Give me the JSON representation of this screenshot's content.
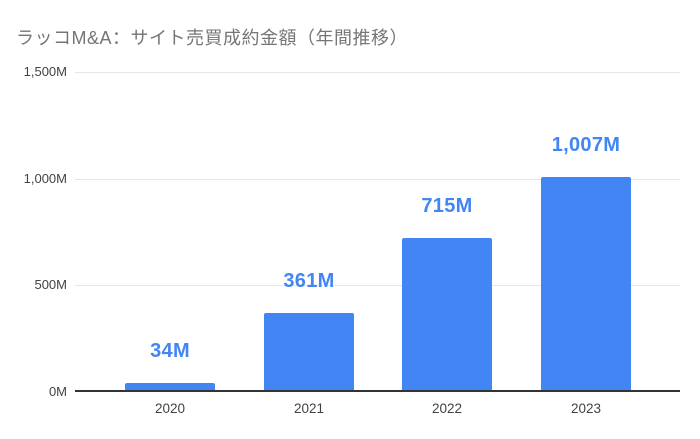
{
  "title": "ラッコM&A：サイト売買成約金額（年間推移）",
  "colors": {
    "bar": "#4285f4",
    "value_label": "#4285f4",
    "title_text": "#757575",
    "axis_text": "#424242",
    "gridline": "#e6e6e6",
    "baseline": "#333333",
    "background": "#ffffff"
  },
  "chart_data": {
    "type": "bar",
    "title": "ラッコM&A：サイト売買成約金額（年間推移）",
    "categories": [
      "2020",
      "2021",
      "2022",
      "2023"
    ],
    "values": [
      34,
      361,
      715,
      1007
    ],
    "value_labels": [
      "34M",
      "361M",
      "715M",
      "1,007M"
    ],
    "series_name": "サイト売買成約金額",
    "xlabel": "",
    "ylabel": "",
    "ylim": [
      0,
      1500
    ],
    "yticks": [
      "0M",
      "500M",
      "1,000M",
      "1,500M"
    ],
    "grid": true,
    "legend": false,
    "unit": "M"
  }
}
